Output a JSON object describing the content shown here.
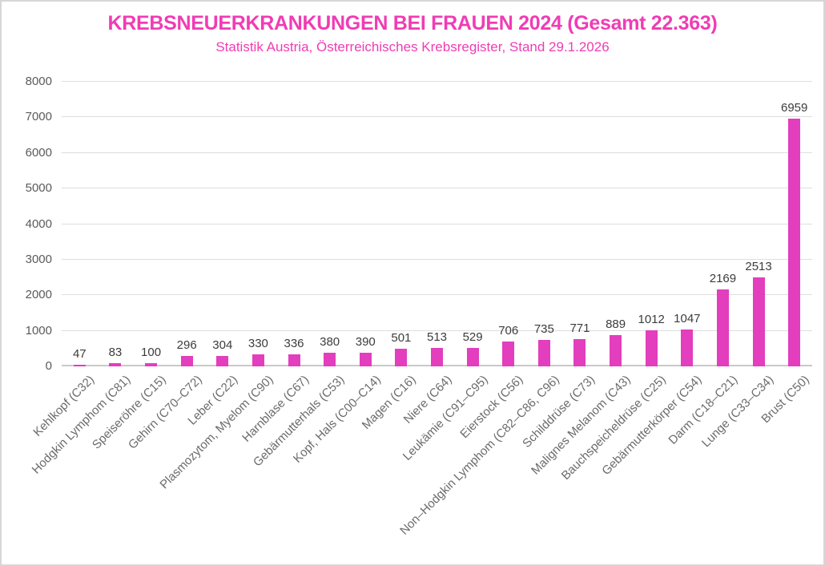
{
  "chart_data": {
    "type": "bar",
    "title": "KREBSNEUERKRANKUNGEN BEI FRAUEN 2024 (Gesamt 22.363)",
    "subtitle": "Statistik Austria, Österreichisches Krebsregister, Stand 29.1.2026",
    "categories": [
      "Kehlkopf (C32)",
      "Hodgkin Lymphom (C81)",
      "Speiseröhre (C15)",
      "Gehirn (C70–C72)",
      "Leber (C22)",
      "Plasmozytom, Myelom (C90)",
      "Harnblase (C67)",
      "Gebärmutterhals (C53)",
      "Kopf, Hals (C00–C14)",
      "Magen (C16)",
      "Niere (C64)",
      "Leukämie (C91–C95)",
      "Eierstock (C56)",
      "Non–Hodgkin Lymphom (C82–C86, C96)",
      "Schilddrüse (C73)",
      "Malignes Melanom (C43)",
      "Bauchspeicheldrüse (C25)",
      "Gebärmutterkörper (C54)",
      "Darm (C18–C21)",
      "Lunge (C33–C34)",
      "Brust (C50)"
    ],
    "values": [
      47,
      83,
      100,
      296,
      304,
      330,
      336,
      380,
      390,
      501,
      513,
      529,
      706,
      735,
      771,
      889,
      1012,
      1047,
      2169,
      2513,
      6959
    ],
    "value_labels_shown": true,
    "xlabel": "",
    "ylabel": "",
    "ylim": [
      0,
      8000
    ],
    "yticks": [
      0,
      1000,
      2000,
      3000,
      4000,
      5000,
      6000,
      7000,
      8000
    ],
    "grid": true,
    "legend_position": "none",
    "x_tick_rotation_deg": 45
  },
  "colors": {
    "accent_title": "#F03CB4",
    "bar_fill": "#E23EBE",
    "gridline": "#DEDEDE",
    "axis_baseline": "#C9C9C9",
    "tick_label": "#5A5A5A",
    "value_label": "#3C3C3C",
    "category_label": "#6B6B6B",
    "frame_border": "#D6D6D6",
    "background": "#FFFFFF"
  }
}
